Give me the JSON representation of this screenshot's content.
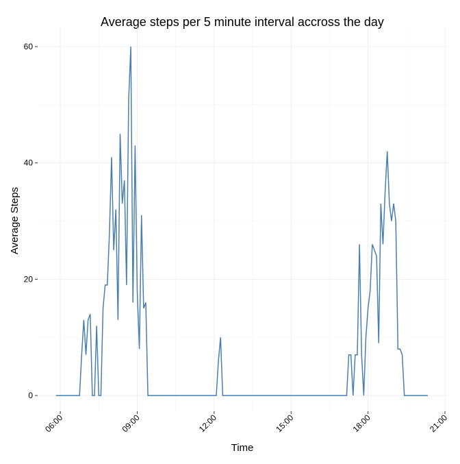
{
  "chart_data": {
    "type": "line",
    "title": "Average steps per 5 minute interval accross the day",
    "x_label": "Time",
    "y_label": "Average Steps",
    "color": "#4a7fad",
    "grid": true,
    "x": [
      "05:50",
      "06:45",
      "06:50",
      "06:55",
      "07:00",
      "07:05",
      "07:10",
      "07:15",
      "07:20",
      "07:25",
      "07:30",
      "07:35",
      "07:40",
      "07:45",
      "07:50",
      "07:55",
      "08:00",
      "08:05",
      "08:10",
      "08:15",
      "08:20",
      "08:25",
      "08:30",
      "08:35",
      "08:40",
      "08:45",
      "08:50",
      "08:55",
      "09:00",
      "09:05",
      "09:10",
      "09:15",
      "09:20",
      "09:25",
      "12:05",
      "12:10",
      "12:15",
      "12:20",
      "17:10",
      "17:15",
      "17:20",
      "17:25",
      "17:30",
      "17:35",
      "17:40",
      "17:45",
      "17:50",
      "17:55",
      "18:00",
      "18:05",
      "18:10",
      "18:15",
      "18:20",
      "18:25",
      "18:30",
      "18:35",
      "18:40",
      "18:45",
      "18:50",
      "18:55",
      "19:00",
      "19:05",
      "19:10",
      "19:15",
      "19:20",
      "19:25",
      "20:20"
    ],
    "values": [
      0,
      0,
      7,
      13,
      7,
      13,
      14,
      0,
      0,
      12,
      0,
      0,
      15,
      19,
      19,
      28,
      41,
      25,
      32,
      13,
      45,
      33,
      37,
      19,
      51,
      60,
      16,
      43,
      18,
      8,
      31,
      15,
      16,
      0,
      0,
      6,
      10,
      0,
      0,
      7,
      7,
      0,
      7,
      7,
      26,
      7,
      0,
      10,
      15,
      18,
      26,
      25,
      24,
      9,
      33,
      26,
      35,
      42,
      33,
      30,
      33,
      30,
      8,
      8,
      7,
      0,
      0
    ],
    "xlim": [
      "05:07",
      "21:08"
    ],
    "xticks": [
      "06:00",
      "09:00",
      "12:00",
      "15:00",
      "18:00",
      "21:00"
    ],
    "ylim": [
      -2.7,
      63.3
    ],
    "yticks": [
      0,
      20,
      40,
      60
    ]
  }
}
